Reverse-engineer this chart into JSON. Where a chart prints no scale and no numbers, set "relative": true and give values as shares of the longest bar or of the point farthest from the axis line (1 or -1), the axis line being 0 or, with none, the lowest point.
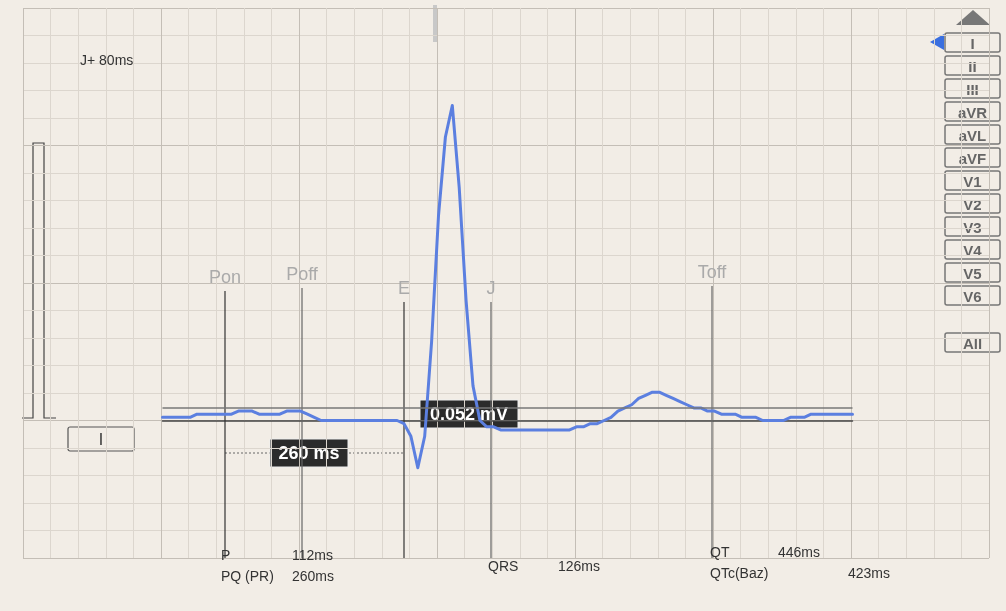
{
  "chart_data": {
    "type": "line",
    "relative": true,
    "grid": true,
    "marker": "none",
    "line_style": "solid",
    "categories": [
      null,
      null,
      null,
      null,
      null,
      null,
      null,
      null,
      null,
      null,
      null,
      null,
      null,
      null,
      null,
      null,
      null,
      null,
      null,
      null,
      null,
      null,
      null,
      null,
      null,
      null,
      null,
      null,
      null,
      null,
      null,
      null,
      null,
      null,
      null,
      null,
      null,
      null,
      null,
      null,
      null,
      null,
      null,
      null,
      null,
      null,
      null,
      null,
      null,
      null,
      null,
      null,
      null,
      null,
      null,
      null,
      null,
      null,
      null,
      null,
      null,
      null,
      null,
      null,
      null,
      null,
      null,
      null,
      null,
      null,
      null,
      null,
      null,
      null,
      null,
      null,
      null,
      null,
      null,
      null,
      null,
      null,
      null,
      null,
      null,
      null,
      null,
      null,
      null,
      null,
      null,
      null,
      null,
      null,
      null,
      null,
      null,
      null,
      null,
      null,
      null
    ],
    "series": [
      {
        "color": "#5b7fe0",
        "values": [
          0.01,
          0.01,
          0.01,
          0.01,
          0.01,
          0.02,
          0.02,
          0.02,
          0.02,
          0.02,
          0.02,
          0.03,
          0.03,
          0.03,
          0.02,
          0.02,
          0.02,
          0.02,
          0.03,
          0.03,
          0.03,
          0.02,
          0.01,
          0,
          0,
          0,
          0,
          0,
          0,
          0,
          0,
          0,
          0,
          0,
          0,
          -0.01,
          -0.05,
          -0.15,
          -0.05,
          0.25,
          0.65,
          0.9,
          1,
          0.74,
          0.38,
          0.11,
          0,
          -0.02,
          -0.02,
          -0.03,
          -0.03,
          -0.03,
          -0.03,
          -0.03,
          -0.03,
          -0.03,
          -0.03,
          -0.03,
          -0.03,
          -0.03,
          -0.02,
          -0.02,
          -0.01,
          -0.01,
          0,
          0.01,
          0.03,
          0.04,
          0.05,
          0.07,
          0.08,
          0.09,
          0.09,
          0.08,
          0.07,
          0.06,
          0.05,
          0.04,
          0.04,
          0.03,
          0.03,
          0.02,
          0.02,
          0.02,
          0.01,
          0.01,
          0.01,
          0,
          0,
          0,
          0,
          0.01,
          0.01,
          0.01,
          0.02,
          0.02,
          0.02,
          0.02,
          0.02,
          0.02,
          0.02
        ]
      }
    ],
    "ref_lines": [
      {
        "axis": "y",
        "value": 0.04,
        "label": null,
        "color": "#777777"
      }
    ],
    "annotations": [
      "J+ 80ms",
      "I",
      "260 ms",
      "0.052 mV",
      "P",
      "112ms",
      "PQ (PR)",
      "260ms",
      "QRS",
      "126ms",
      "QT",
      "446ms",
      "QTc(Baz)",
      "423ms",
      "Pon",
      "Poff",
      "E",
      "J",
      "Toff",
      "I",
      "II",
      "III",
      "aVR",
      "aVL",
      "aVF",
      "V1",
      "V2",
      "V3",
      "V4",
      "V5",
      "V6",
      "All"
    ]
  }
}
